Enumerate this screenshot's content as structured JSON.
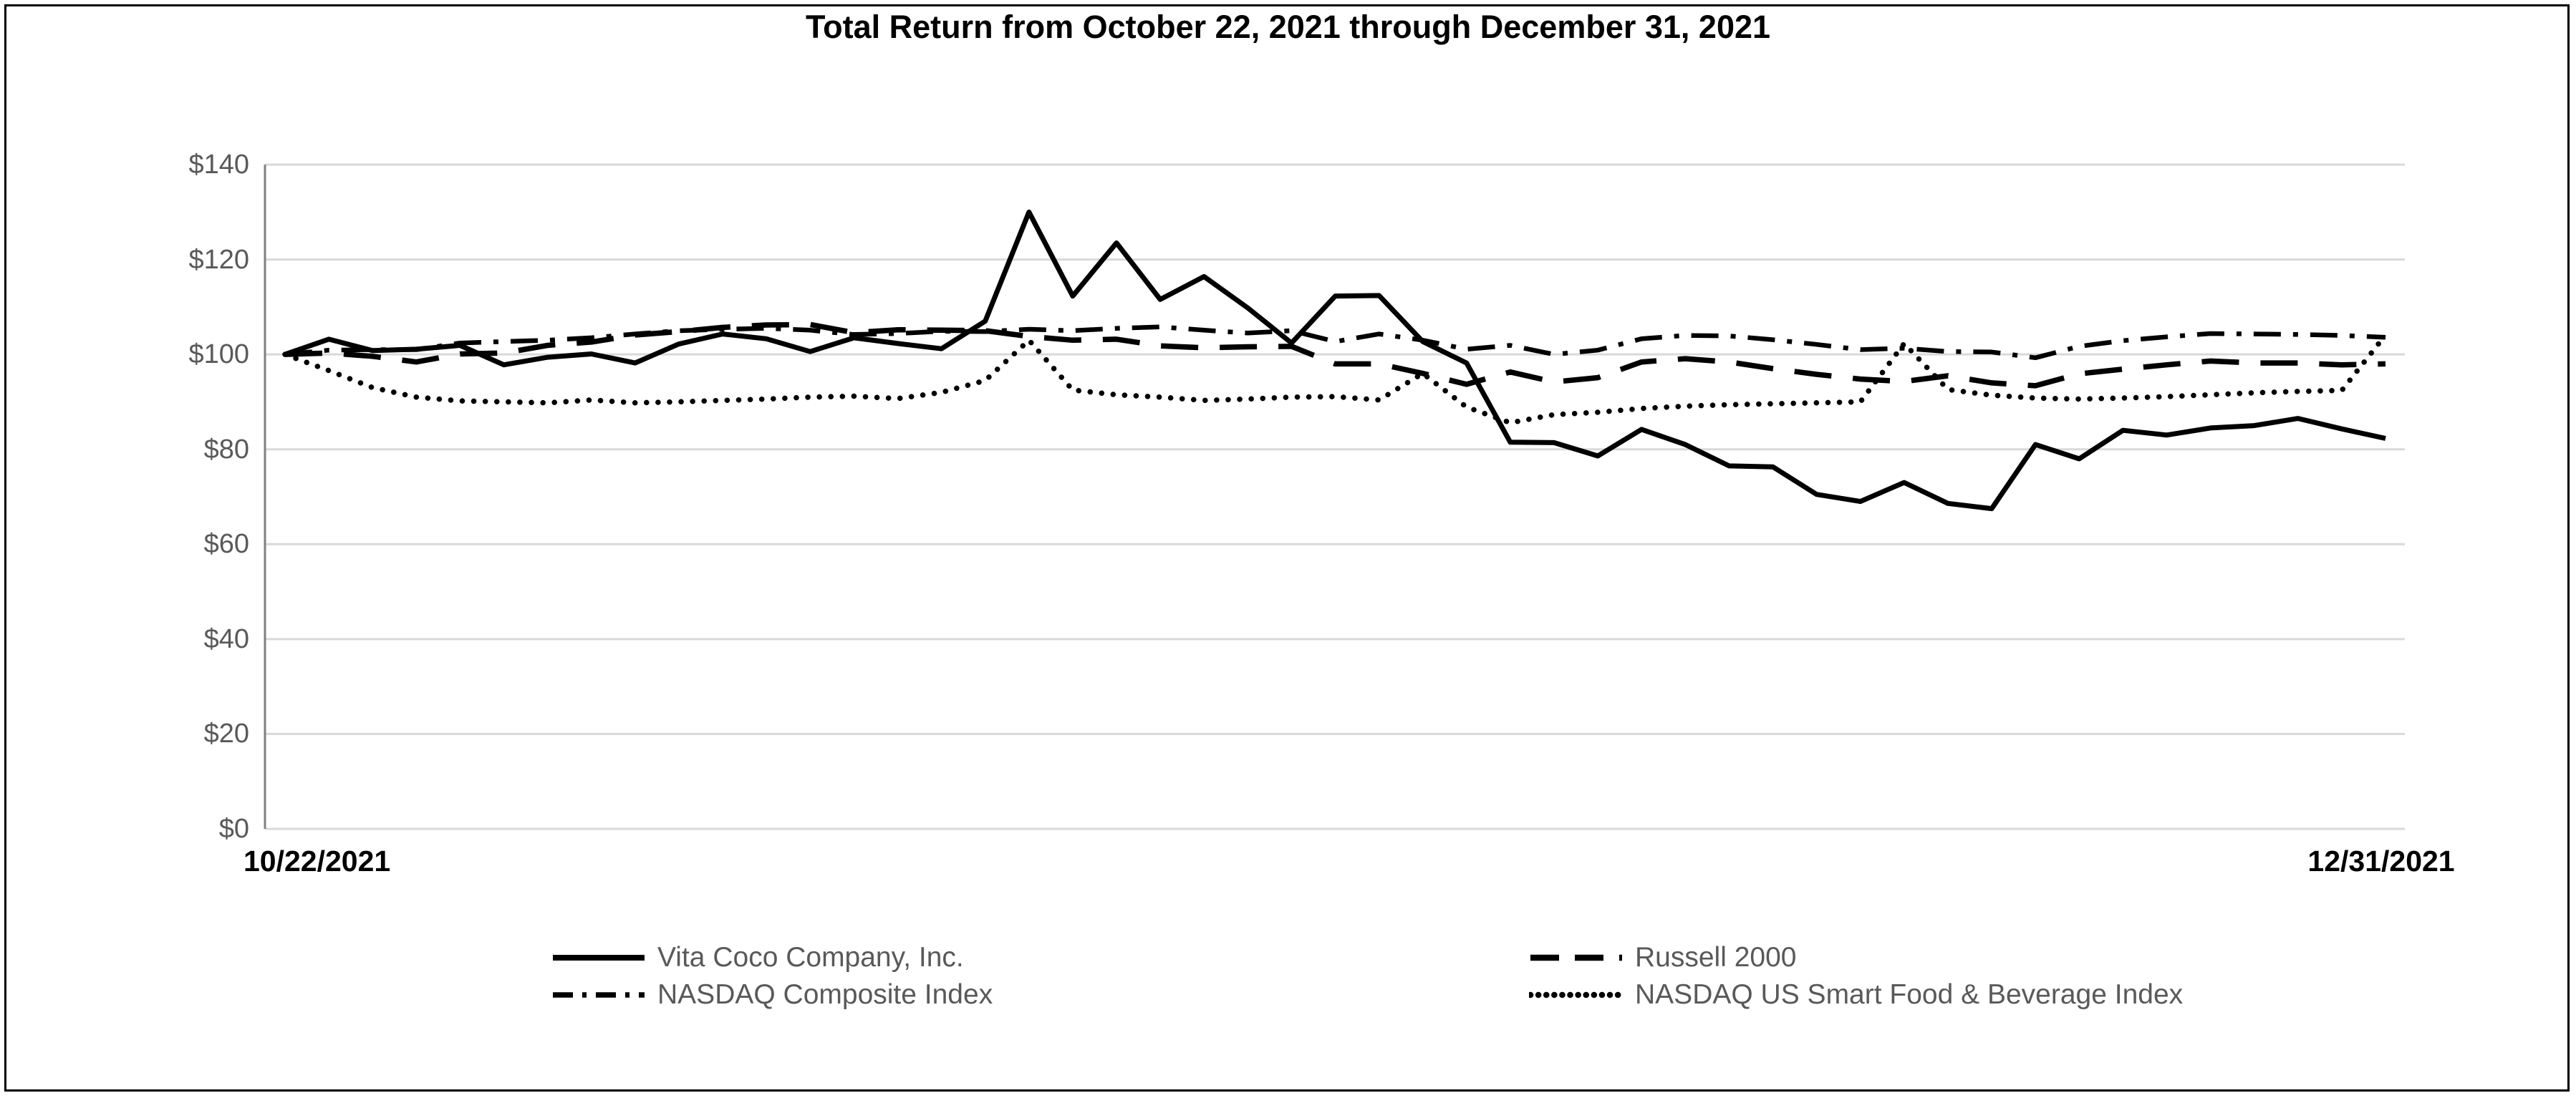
{
  "chart_data": {
    "type": "line",
    "title": "Total Return from October 22, 2021 through December 31, 2021",
    "x_start_label": "10/22/2021",
    "x_end_label": "12/31/2021",
    "xlabel": "",
    "ylabel": "",
    "ylim": [
      0,
      140
    ],
    "y_tick_values": [
      140,
      120,
      100,
      80,
      60,
      40,
      20,
      0
    ],
    "y_tick_labels": [
      "$140",
      "$120",
      "$100",
      "$80",
      "$60",
      "$40",
      "$20",
      "$0"
    ],
    "grid": "horizontal",
    "legend_position": "bottom",
    "dates": [
      "10/22/2021",
      "10/25/2021",
      "10/26/2021",
      "10/27/2021",
      "10/28/2021",
      "10/29/2021",
      "11/1/2021",
      "11/2/2021",
      "11/3/2021",
      "11/4/2021",
      "11/5/2021",
      "11/8/2021",
      "11/9/2021",
      "11/10/2021",
      "11/11/2021",
      "11/12/2021",
      "11/15/2021",
      "11/16/2021",
      "11/17/2021",
      "11/18/2021",
      "11/19/2021",
      "11/22/2021",
      "11/23/2021",
      "11/24/2021",
      "11/26/2021",
      "11/29/2021",
      "11/30/2021",
      "12/1/2021",
      "12/2/2021",
      "12/3/2021",
      "12/6/2021",
      "12/7/2021",
      "12/8/2021",
      "12/9/2021",
      "12/10/2021",
      "12/13/2021",
      "12/14/2021",
      "12/15/2021",
      "12/16/2021",
      "12/17/2021",
      "12/20/2021",
      "12/21/2021",
      "12/22/2021",
      "12/23/2021",
      "12/27/2021",
      "12/28/2021",
      "12/29/2021",
      "12/30/2021",
      "12/31/2021"
    ],
    "series": [
      {
        "name": "Vita Coco Company, Inc.",
        "line_style": "solid",
        "color": "#000000",
        "values": [
          100,
          103.2,
          100.8,
          101.1,
          101.9,
          97.8,
          99.4,
          100.1,
          98.2,
          102.2,
          104.3,
          103.3,
          100.6,
          103.5,
          102.3,
          101.2,
          107.0,
          130.0,
          112.3,
          123.5,
          111.6,
          116.4,
          109.8,
          102.4,
          112.3,
          112.4,
          102.7,
          98.2,
          81.5,
          81.4,
          78.6,
          84.2,
          81.0,
          76.5,
          76.3,
          70.5,
          69.0,
          73.0,
          68.6,
          67.5,
          81.0,
          78.0,
          84.0,
          83.0,
          84.5,
          85.0,
          86.5,
          84.3,
          82.3
        ]
      },
      {
        "name": "Russell 2000",
        "line_style": "dashed",
        "color": "#000000",
        "values": [
          100,
          100.3,
          99.6,
          98.4,
          100.1,
          100.3,
          101.9,
          102.6,
          104.1,
          104.8,
          105.7,
          106.2,
          106.3,
          104.6,
          105.2,
          105.1,
          105.0,
          103.8,
          103.0,
          103.2,
          101.8,
          101.4,
          101.6,
          101.7,
          98.0,
          98.0,
          96.0,
          93.7,
          96.3,
          94.2,
          95.1,
          98.4,
          99.1,
          98.4,
          97.0,
          95.8,
          94.8,
          94.3,
          95.5,
          94.0,
          93.4,
          95.9,
          96.9,
          97.8,
          98.6,
          98.2,
          98.2,
          97.8,
          98.0
        ]
      },
      {
        "name": "NASDAQ Composite Index",
        "line_style": "dash-dot",
        "color": "#000000",
        "values": [
          100,
          100.9,
          101.0,
          101.0,
          102.4,
          102.7,
          103.0,
          103.5,
          104.3,
          105.0,
          105.3,
          105.5,
          105.1,
          104.2,
          104.4,
          104.9,
          104.8,
          105.3,
          105.0,
          105.5,
          105.8,
          105.1,
          104.5,
          105.0,
          102.7,
          104.3,
          103.0,
          101.1,
          101.9,
          100.0,
          100.9,
          103.3,
          104.0,
          103.9,
          103.1,
          102.1,
          101.0,
          101.3,
          100.6,
          100.5,
          99.3,
          101.7,
          102.9,
          103.7,
          104.4,
          104.3,
          104.2,
          104.0,
          103.6
        ]
      },
      {
        "name": "NASDAQ US Smart Food & Beverage Index",
        "line_style": "dotted",
        "color": "#000000",
        "values": [
          100,
          96.6,
          93.0,
          91.0,
          90.2,
          90.0,
          89.8,
          90.4,
          89.8,
          90.0,
          90.3,
          90.6,
          91.0,
          91.2,
          90.7,
          92.0,
          94.5,
          103.0,
          92.5,
          91.5,
          91.0,
          90.3,
          90.6,
          91.0,
          91.1,
          90.4,
          96.0,
          88.9,
          85.6,
          87.3,
          87.8,
          88.6,
          89.1,
          89.4,
          89.6,
          89.8,
          90.0,
          102.3,
          92.6,
          91.4,
          90.8,
          90.6,
          90.8,
          91.1,
          91.5,
          91.9,
          92.2,
          92.4,
          104.1
        ]
      }
    ]
  },
  "legend": {
    "items": [
      {
        "label": "Vita Coco Company, Inc.",
        "style": "solid"
      },
      {
        "label": "Russell 2000",
        "style": "dashed"
      },
      {
        "label": "NASDAQ Composite Index",
        "style": "dash-dot"
      },
      {
        "label": "NASDAQ US Smart Food & Beverage Index",
        "style": "dotted"
      }
    ]
  },
  "colors": {
    "line": "#000000",
    "text_muted": "#595959",
    "grid": "#d9d9d9",
    "axis": "#808080",
    "background": "#ffffff",
    "border": "#000000"
  }
}
